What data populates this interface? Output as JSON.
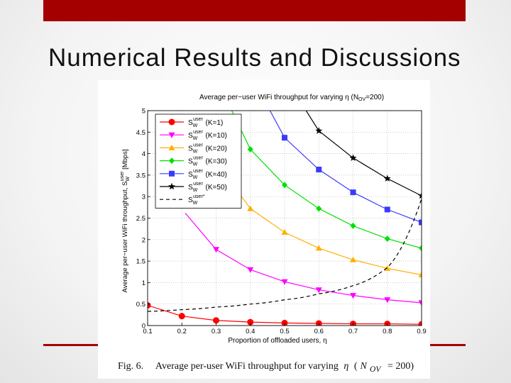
{
  "slide": {
    "title": "Numerical Results and Discussions",
    "accent_color": "#a50000"
  },
  "caption": {
    "label": "Fig. 6.",
    "text": "Average per-user WiFi throughput for varying",
    "eta": "η",
    "open": "(",
    "n_letter": "N",
    "n_sub": "OV",
    "equals": "=",
    "value": "200)"
  },
  "chart_data": {
    "type": "line",
    "title": "Average per−user WiFi throughput for varying η (N",
    "title_sub": "OV",
    "title_tail": "=200)",
    "xlabel": "Proportion of offloaded users, η",
    "ylabel": "Average per−user WiFi throughput, S",
    "ylabel_sub": "W",
    "ylabel_sup": "user",
    "ylabel_unit": " [Mbps]",
    "xlim": [
      0.1,
      0.9
    ],
    "ylim": [
      0,
      5
    ],
    "xticks": [
      "0.1",
      "0.2",
      "0.3",
      "0.4",
      "0.5",
      "0.6",
      "0.7",
      "0.8",
      "0.9"
    ],
    "yticks": [
      "0",
      "0.5",
      "1",
      "1.5",
      "2",
      "2.5",
      "3",
      "3.5",
      "4",
      "4.5",
      "5"
    ],
    "grid": true,
    "legend_position": "top-left",
    "x": [
      0.1,
      0.2,
      0.3,
      0.4,
      0.5,
      0.6,
      0.7,
      0.8,
      0.9
    ],
    "series": [
      {
        "legend_main": "S",
        "legend_sub": "W",
        "legend_sup": "user",
        "legend_param": " (K=1)",
        "color": "#ff0000",
        "marker": "circle",
        "dashed": false,
        "x": [
          0.1,
          0.2,
          0.3,
          0.4,
          0.5,
          0.6,
          0.7,
          0.8,
          0.9
        ],
        "values": [
          0.47,
          0.22,
          0.12,
          0.08,
          0.06,
          0.05,
          0.04,
          0.04,
          0.03
        ]
      },
      {
        "legend_main": "S",
        "legend_sub": "W",
        "legend_sup": "user",
        "legend_param": " (K=10)",
        "color": "#ff00ff",
        "marker": "triangle-down",
        "dashed": false,
        "x": [
          0.3,
          0.4,
          0.5,
          0.6,
          0.7,
          0.8,
          0.9
        ],
        "values": [
          1.77,
          1.3,
          1.02,
          0.83,
          0.7,
          0.6,
          0.53
        ]
      },
      {
        "legend_main": "S",
        "legend_sub": "W",
        "legend_sup": "user",
        "legend_param": " (K=20)",
        "color": "#ffb000",
        "marker": "triangle-up",
        "dashed": false,
        "x": [
          0.4,
          0.5,
          0.6,
          0.7,
          0.8,
          0.9
        ],
        "values": [
          2.72,
          2.17,
          1.8,
          1.53,
          1.33,
          1.18
        ]
      },
      {
        "legend_main": "S",
        "legend_sub": "W",
        "legend_sup": "user",
        "legend_param": " (K=30)",
        "color": "#00e000",
        "marker": "diamond",
        "dashed": false,
        "x": [
          0.4,
          0.5,
          0.6,
          0.7,
          0.8,
          0.9
        ],
        "values": [
          4.1,
          3.27,
          2.72,
          2.32,
          2.02,
          1.8
        ]
      },
      {
        "legend_main": "S",
        "legend_sub": "W",
        "legend_sup": "user",
        "legend_param": " (K=40)",
        "color": "#3a3aff",
        "marker": "square",
        "dashed": false,
        "x": [
          0.5,
          0.6,
          0.7,
          0.8,
          0.9
        ],
        "values": [
          4.37,
          3.63,
          3.1,
          2.7,
          2.4
        ]
      },
      {
        "legend_main": "S",
        "legend_sub": "W",
        "legend_sup": "user",
        "legend_param": " (K=50)",
        "color": "#000000",
        "marker": "star",
        "dashed": false,
        "x": [
          0.6,
          0.7,
          0.8,
          0.9
        ],
        "values": [
          4.53,
          3.9,
          3.42,
          3.02
        ]
      },
      {
        "legend_main": "S",
        "legend_sub": "W",
        "legend_sup": "user*",
        "legend_param": "",
        "color": "#000000",
        "marker": "none",
        "dashed": true,
        "x": [
          0.1,
          0.2,
          0.3,
          0.4,
          0.5,
          0.6,
          0.7,
          0.8,
          0.9
        ],
        "values": [
          0.33,
          0.37,
          0.43,
          0.5,
          0.6,
          0.74,
          0.93,
          1.35,
          2.95
        ]
      }
    ]
  }
}
